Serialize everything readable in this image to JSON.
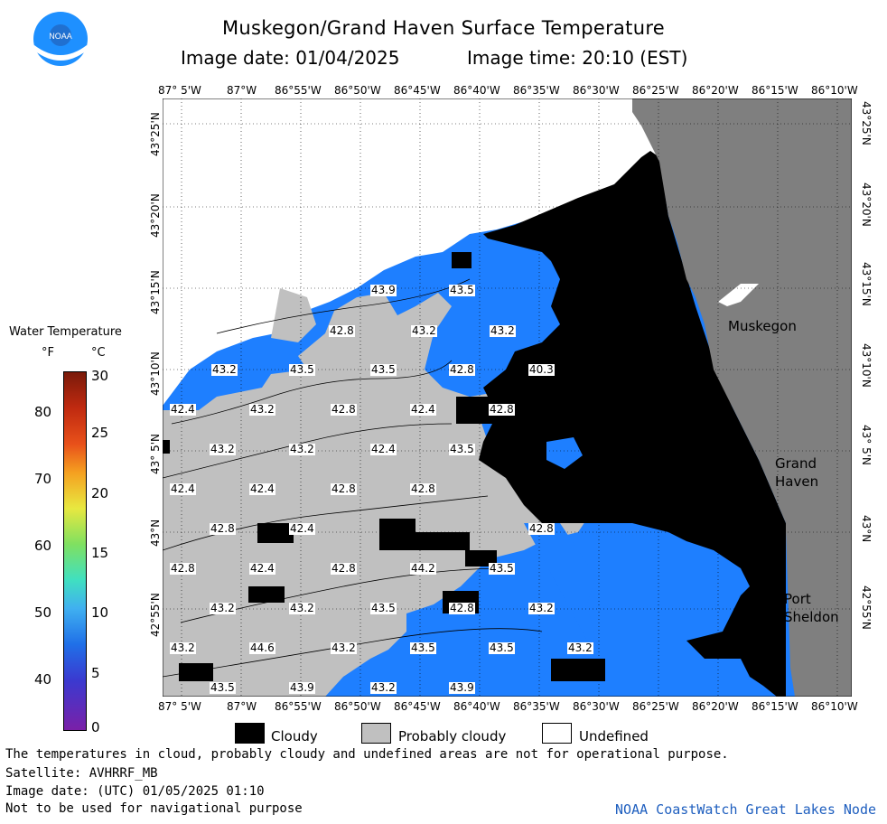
{
  "header": {
    "title": "Muskegon/Grand Haven Surface Temperature",
    "image_date": "Image date: 01/04/2025",
    "image_time": "Image time: 20:10 (EST)",
    "logo_text": "NOAA"
  },
  "map": {
    "lon_labels": [
      "87° 5'W",
      "87°W",
      "86°55'W",
      "86°50'W",
      "86°45'W",
      "86°40'W",
      "86°35'W",
      "86°30'W",
      "86°25'W",
      "86°20'W",
      "86°15'W",
      "86°10'W"
    ],
    "lat_labels": [
      "43°25'N",
      "43°20'N",
      "43°15'N",
      "43°10'N",
      "43° 5'N",
      "43°N",
      "42°55'N"
    ],
    "cities": [
      "Muskegon",
      "Grand",
      "Haven",
      "Port",
      "Sheldon"
    ],
    "colors": {
      "land": "#7f7f7f",
      "cloudy": "#000000",
      "probably_cloudy": "#c0c0c0",
      "water": "#1e7fff",
      "water_dark": "#2a5de8",
      "undefined": "#ffffff"
    },
    "contour_labels": [
      "43.9",
      "43.5",
      "42.8",
      "43.2",
      "43.2",
      "43.2",
      "43.5",
      "43.5",
      "42.8",
      "40.3",
      "42.4",
      "43.2",
      "42.8",
      "42.4",
      "42.8",
      "43.2",
      "43.2",
      "42.4",
      "43.5",
      "42.4",
      "42.4",
      "42.8",
      "42.8",
      "42.8",
      "42.4",
      "42.8",
      "42.8",
      "42.4",
      "42.8",
      "44.2",
      "43.5",
      "43.2",
      "43.2",
      "43.5",
      "42.8",
      "43.2",
      "44.6",
      "43.2",
      "43.5",
      "43.5",
      "43.2",
      "43.2",
      "43.5",
      "43.9",
      "43.2",
      "43.9"
    ]
  },
  "colorbar": {
    "title": "Water Temperature",
    "unit_f": "°F",
    "unit_c": "°C",
    "f_ticks": [
      "80",
      "70",
      "60",
      "50",
      "40"
    ],
    "c_ticks": [
      "30",
      "25",
      "20",
      "15",
      "10",
      "5",
      "0"
    ]
  },
  "legend": {
    "cloudy": "Cloudy",
    "probably_cloudy": "Probably cloudy",
    "undefined": "Undefined"
  },
  "footer": {
    "line1": "The temperatures in cloud, probably cloudy and undefined areas are not for operational purpose.",
    "line2": "Satellite: AVHRRF_MB",
    "line3": "Image date: (UTC) 01/05/2025  01:10",
    "line4": "Not to be used for navigational purpose",
    "node": "NOAA CoastWatch Great Lakes Node"
  }
}
